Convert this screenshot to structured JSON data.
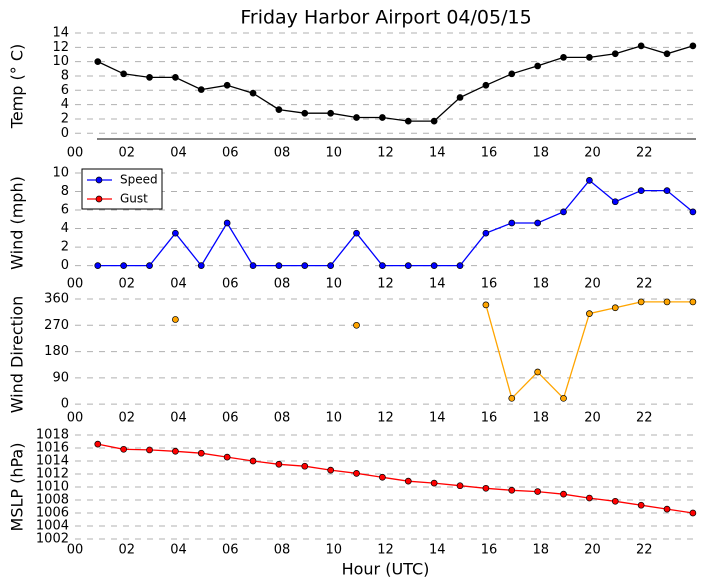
{
  "chart_data": [
    {
      "type": "line",
      "title": "Friday Harbor Airport 04/05/15",
      "ylabel": "Temp (° C)",
      "x": [
        0.88,
        1.88,
        2.88,
        3.88,
        4.88,
        5.88,
        6.88,
        7.88,
        8.88,
        9.88,
        10.88,
        11.88,
        12.88,
        13.88,
        14.88,
        15.88,
        16.88,
        17.88,
        18.88,
        19.88,
        20.88,
        21.88,
        22.88,
        23.88
      ],
      "series": [
        {
          "color": "#000000",
          "values": [
            10,
            8.3,
            7.8,
            7.8,
            6.1,
            6.7,
            5.6,
            3.3,
            2.8,
            2.8,
            2.2,
            2.2,
            1.7,
            1.7,
            5.0,
            6.7,
            8.3,
            9.4,
            10.6,
            10.6,
            11.1,
            12.2,
            11.1,
            12.2
          ]
        }
      ],
      "xlim": [
        0,
        24
      ],
      "xticks": [
        {
          "value": 0,
          "label": "00"
        },
        {
          "value": 2,
          "label": "02"
        },
        {
          "value": 4,
          "label": "04"
        },
        {
          "value": 6,
          "label": "06"
        },
        {
          "value": 8,
          "label": "08"
        },
        10,
        12,
        14,
        16,
        18,
        20,
        22
      ],
      "ylim": [
        -0.8,
        14
      ],
      "yticks": [
        0,
        2,
        4,
        6,
        8,
        10,
        12,
        14
      ],
      "grid": true
    },
    {
      "type": "line",
      "ylabel": "Wind (mph)",
      "x": [
        0.88,
        1.88,
        2.88,
        3.88,
        4.88,
        5.88,
        6.88,
        7.88,
        8.88,
        9.88,
        10.88,
        11.88,
        12.88,
        13.88,
        14.88,
        15.88,
        16.88,
        17.88,
        18.88,
        19.88,
        20.88,
        21.88,
        22.88,
        23.88
      ],
      "series": [
        {
          "name": "Speed",
          "color": "#0000ff",
          "values": [
            0,
            0,
            0,
            3.5,
            0,
            4.6,
            0,
            0,
            0,
            0,
            3.5,
            0,
            0,
            0,
            0,
            3.5,
            4.6,
            4.6,
            5.8,
            9.2,
            6.9,
            8.1,
            8.1,
            5.8
          ]
        },
        {
          "name": "Gust",
          "color": "#ff0000",
          "values": [
            null,
            null,
            null,
            null,
            null,
            null,
            null,
            null,
            null,
            null,
            null,
            null,
            null,
            null,
            null,
            null,
            null,
            null,
            null,
            null,
            null,
            null,
            null,
            null
          ]
        }
      ],
      "xlim": [
        0,
        24
      ],
      "xticks": [
        {
          "value": 0,
          "label": "00"
        },
        {
          "value": 2,
          "label": "02"
        },
        {
          "value": 4,
          "label": "04"
        },
        {
          "value": 6,
          "label": "06"
        },
        {
          "value": 8,
          "label": "08"
        },
        10,
        12,
        14,
        16,
        18,
        20,
        22
      ],
      "ylim": [
        -0.8,
        10
      ],
      "yticks": [
        0,
        2,
        4,
        6,
        8,
        10
      ],
      "grid": true,
      "legend": "upper left"
    },
    {
      "type": "line",
      "ylabel": "Wind Direction",
      "x": [
        0.88,
        1.88,
        2.88,
        3.88,
        4.88,
        5.88,
        6.88,
        7.88,
        8.88,
        9.88,
        10.88,
        11.88,
        12.88,
        13.88,
        14.88,
        15.88,
        16.88,
        17.88,
        18.88,
        19.88,
        20.88,
        21.88,
        22.88,
        23.88
      ],
      "series": [
        {
          "color": "#ffa500",
          "values": [
            null,
            null,
            null,
            290,
            null,
            null,
            null,
            null,
            null,
            null,
            270,
            null,
            null,
            null,
            null,
            340,
            20,
            110,
            20,
            310,
            330,
            350,
            350,
            350
          ]
        }
      ],
      "xlim": [
        0,
        24
      ],
      "xticks": [
        {
          "value": 0,
          "label": "00"
        },
        {
          "value": 2,
          "label": "02"
        },
        {
          "value": 4,
          "label": "04"
        },
        {
          "value": 6,
          "label": "06"
        },
        {
          "value": 8,
          "label": "08"
        },
        10,
        12,
        14,
        16,
        18,
        20,
        22
      ],
      "ylim": [
        -20,
        360
      ],
      "yticks": [
        0,
        90,
        180,
        270,
        360
      ],
      "grid": true
    },
    {
      "type": "line",
      "ylabel": "MSLP (hPa)",
      "xlabel": "Hour (UTC)",
      "x": [
        0.88,
        1.88,
        2.88,
        3.88,
        4.88,
        5.88,
        6.88,
        7.88,
        8.88,
        9.88,
        10.88,
        11.88,
        12.88,
        13.88,
        14.88,
        15.88,
        16.88,
        17.88,
        18.88,
        19.88,
        20.88,
        21.88,
        22.88,
        23.88
      ],
      "series": [
        {
          "color": "#ff0000",
          "values": [
            1016.6,
            1015.8,
            1015.7,
            1015.5,
            1015.2,
            1014.6,
            1014.0,
            1013.5,
            1013.2,
            1012.6,
            1012.1,
            1011.5,
            1010.9,
            1010.6,
            1010.2,
            1009.8,
            1009.5,
            1009.3,
            1008.9,
            1008.3,
            1007.8,
            1007.2,
            1006.6,
            1006.0
          ]
        }
      ],
      "xlim": [
        0,
        24
      ],
      "xticks": [
        {
          "value": 0,
          "label": "00"
        },
        {
          "value": 2,
          "label": "02"
        },
        {
          "value": 4,
          "label": "04"
        },
        {
          "value": 6,
          "label": "06"
        },
        {
          "value": 8,
          "label": "08"
        },
        10,
        12,
        14,
        16,
        18,
        20,
        22
      ],
      "ylim": [
        1002,
        1018
      ],
      "yticks": [
        1002,
        1004,
        1006,
        1008,
        1010,
        1012,
        1014,
        1016,
        1018
      ],
      "grid": true
    }
  ]
}
